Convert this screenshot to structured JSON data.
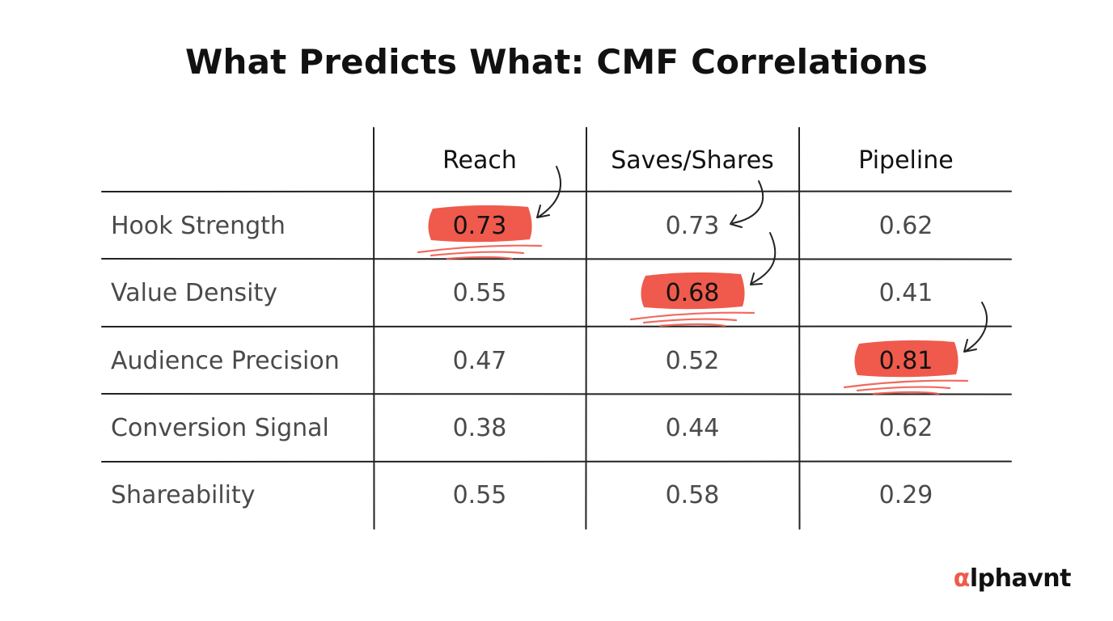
{
  "chart_data": {
    "type": "table",
    "title": "What Predicts What: CMF Correlations",
    "columns": [
      "Reach",
      "Saves/Shares",
      "Pipeline"
    ],
    "rows": [
      "Hook Strength",
      "Value Density",
      "Audience Precision",
      "Conversion Signal",
      "Shareability"
    ],
    "cells": [
      [
        "0.73",
        "0.73",
        "0.62"
      ],
      [
        "0.55",
        "0.68",
        "0.41"
      ],
      [
        "0.47",
        "0.52",
        "0.81"
      ],
      [
        "0.38",
        "0.44",
        "0.62"
      ],
      [
        "0.55",
        "0.58",
        "0.29"
      ]
    ],
    "highlighted": [
      {
        "row": 0,
        "col": 0
      },
      {
        "row": 1,
        "col": 1
      },
      {
        "row": 2,
        "col": 2
      }
    ],
    "highlight_color": "#ef5a4c",
    "text_color": "#4a4a4a"
  },
  "brand": {
    "accent": "α",
    "rest": "lphavnt",
    "accent_color": "#ef5a4c"
  }
}
